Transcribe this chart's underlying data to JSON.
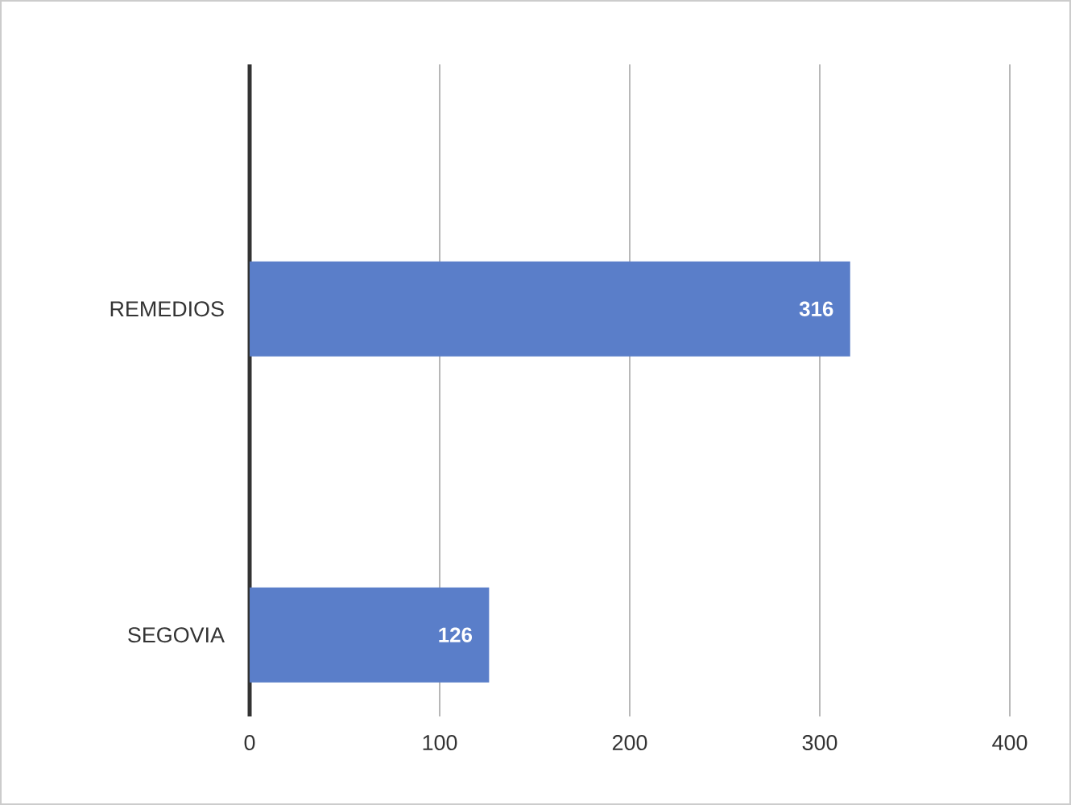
{
  "chart_data": {
    "type": "bar",
    "orientation": "horizontal",
    "categories": [
      "REMEDIOS",
      "SEGOVIA"
    ],
    "values": [
      316,
      126
    ],
    "color": "#5a7ec9",
    "xlim": [
      0,
      400
    ],
    "xticks": [
      0,
      100,
      200,
      300,
      400
    ],
    "grid": "x",
    "data_labels": true
  }
}
